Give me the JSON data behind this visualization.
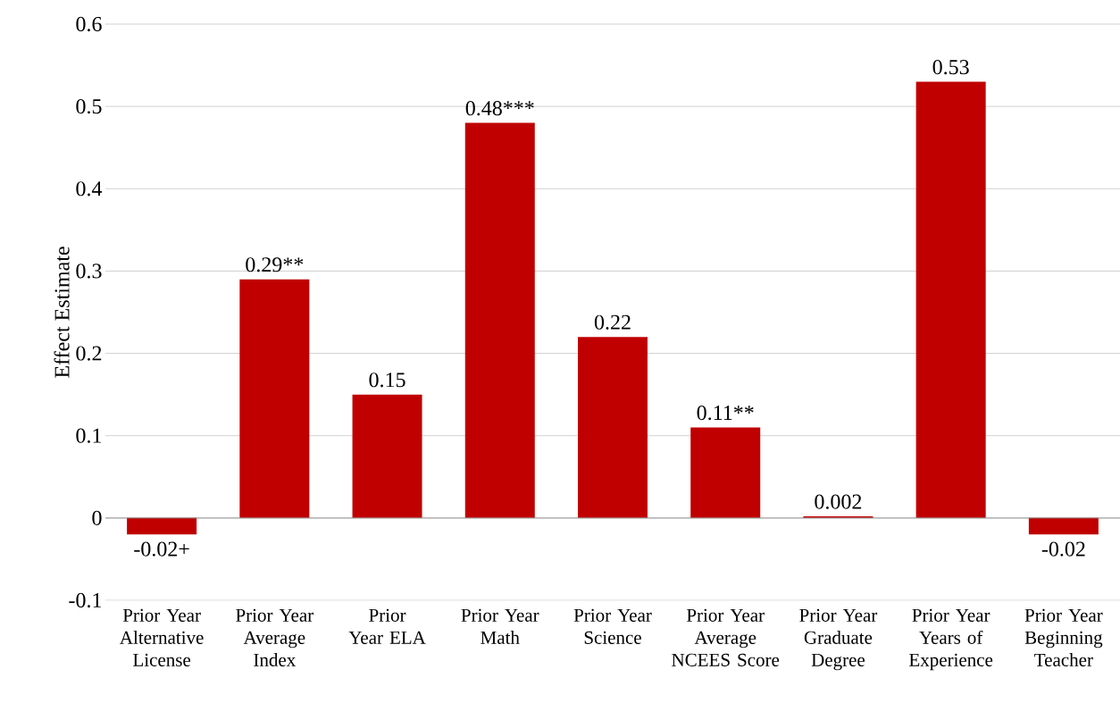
{
  "chart_data": {
    "type": "bar",
    "ylabel": "Effect Estimate",
    "categories": [
      "Prior Year Alternative License",
      "Prior Year Average Index",
      "Prior Year ELA",
      "Prior Year Math",
      "Prior Year Science",
      "Prior Year Average NCEES Score",
      "Prior Year Graduate Degree",
      "Prior Year Years of Experience",
      "Prior Year Beginning Teacher"
    ],
    "values": [
      -0.02,
      0.29,
      0.15,
      0.48,
      0.22,
      0.11,
      0.002,
      0.53,
      -0.02
    ],
    "value_labels": [
      "-0.02+",
      "0.29**",
      "0.15",
      "0.48***",
      "0.22",
      "0.11**",
      "0.002",
      "0.53",
      "-0.02"
    ],
    "color": "#c00000",
    "ylim": [
      -0.1,
      0.6
    ],
    "yticks": [
      -0.1,
      0,
      0.1,
      0.2,
      0.3,
      0.4,
      0.5,
      0.6
    ],
    "grid": "y"
  }
}
